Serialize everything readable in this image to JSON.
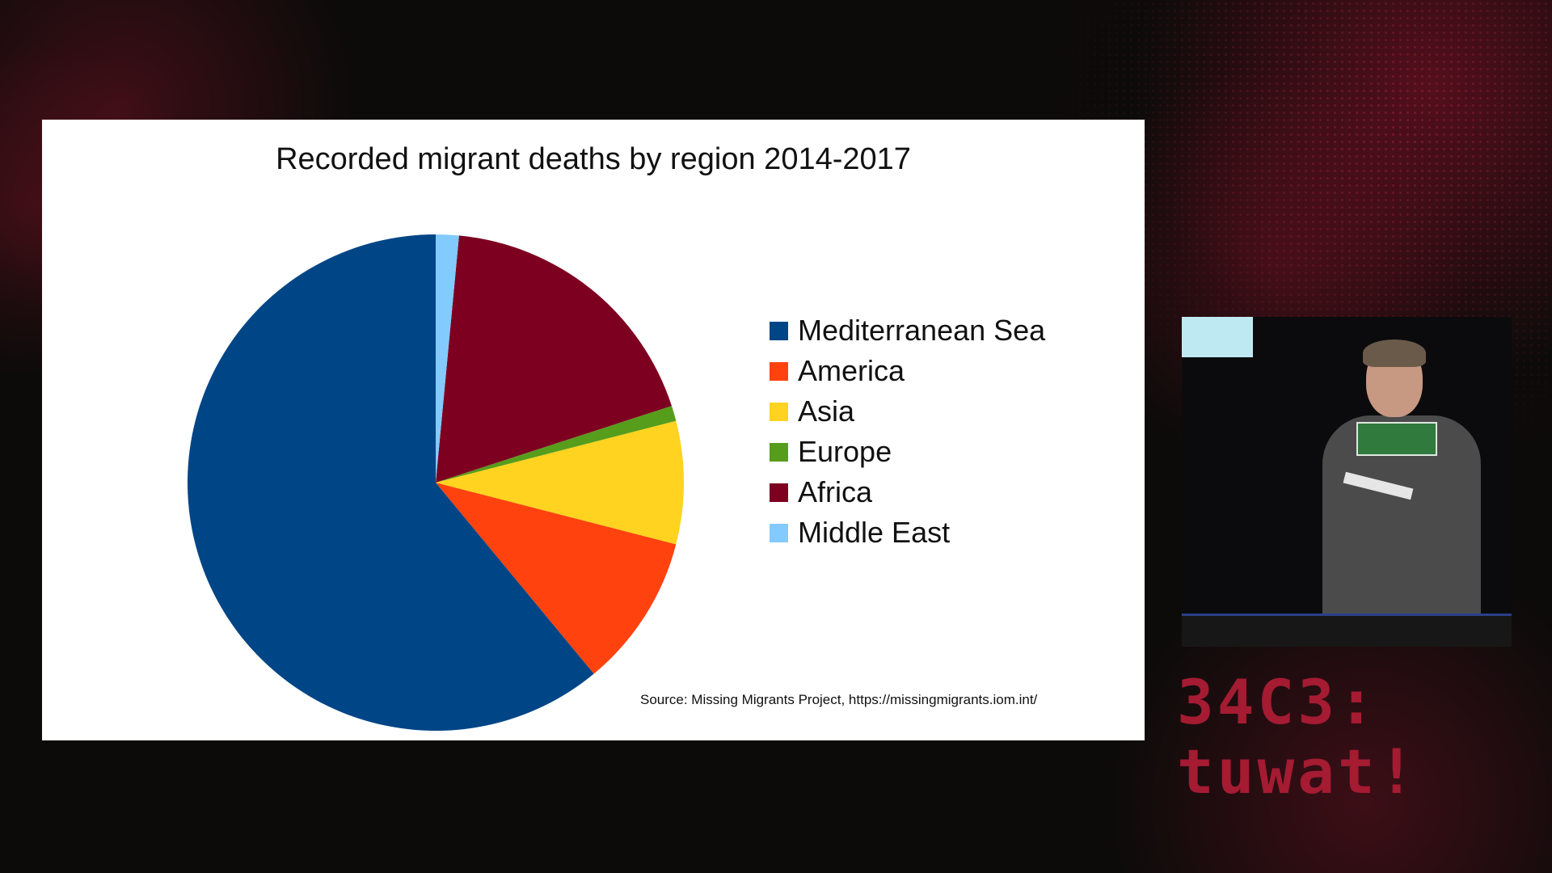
{
  "slide": {
    "source_note": "Source: Missing Migrants Project, https://missingmigrants.iom.int/"
  },
  "chart_data": {
    "type": "pie",
    "title": "Recorded migrant deaths by region 2014-2017",
    "categories": [
      "Mediterranean Sea",
      "America",
      "Asia",
      "Europe",
      "Africa",
      "Middle East"
    ],
    "values": [
      61.0,
      10.0,
      8.0,
      1.0,
      18.5,
      1.5
    ],
    "colors": [
      "#004586",
      "#ff420e",
      "#ffd320",
      "#579d1c",
      "#7e0021",
      "#83caff"
    ],
    "start_angle_deg": 0,
    "direction": "counterclockwise",
    "legend_position": "right"
  },
  "event_logo": {
    "line1": "34C3:",
    "line2": "tuwat!"
  }
}
